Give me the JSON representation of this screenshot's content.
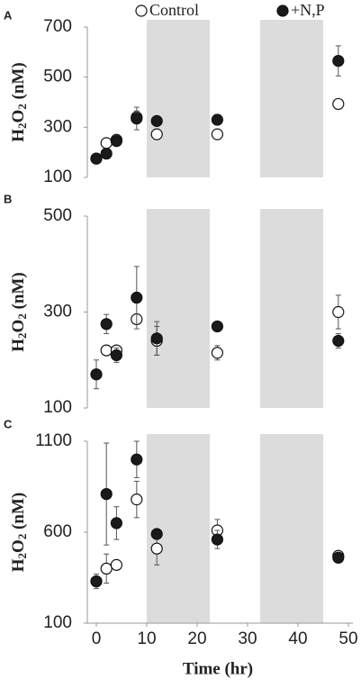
{
  "chart_data": [
    {
      "type": "scatter",
      "panel": "A",
      "ylabel": "H2O2 (nM)",
      "x": [
        0,
        2,
        4,
        8,
        12,
        24,
        48
      ],
      "xlim": [
        0,
        50
      ],
      "ylim": [
        100,
        700
      ],
      "yticks": [
        100,
        300,
        500,
        700
      ],
      "shaded": [
        [
          10,
          22.5
        ],
        [
          32.5,
          45
        ]
      ],
      "series": [
        {
          "name": "Control",
          "color": "#ffffff",
          "values": [
            175,
            237,
            250,
            340,
            272,
            272,
            393
          ],
          "errors": [
            null,
            null,
            null,
            25,
            null,
            null,
            null
          ]
        },
        {
          "name": "+N,P",
          "color": "#1a1a1a",
          "values": [
            175,
            195,
            245,
            335,
            325,
            330,
            565
          ],
          "errors": [
            null,
            null,
            null,
            45,
            null,
            20,
            60
          ]
        }
      ]
    },
    {
      "type": "scatter",
      "panel": "B",
      "ylabel": "H2O2 (nM)",
      "x": [
        0,
        2,
        4,
        8,
        12,
        24,
        48
      ],
      "xlim": [
        0,
        50
      ],
      "ylim": [
        100,
        500
      ],
      "yticks": [
        100,
        300,
        500
      ],
      "shaded": [
        [
          10,
          22.5
        ],
        [
          32.5,
          45
        ]
      ],
      "series": [
        {
          "color": "#ffffff",
          "values": [
            null,
            220,
            220,
            285,
            240,
            215,
            300
          ],
          "errors": [
            null,
            null,
            null,
            null,
            30,
            15,
            35
          ]
        },
        {
          "color": "#1a1a1a",
          "values": [
            170,
            275,
            210,
            330,
            245,
            270,
            240
          ],
          "errors": [
            30,
            20,
            15,
            65,
            35,
            null,
            15
          ]
        }
      ]
    },
    {
      "type": "scatter",
      "panel": "C",
      "ylabel": "H2O2 (nM)",
      "xlabel": "Time (hr)",
      "x": [
        0,
        2,
        4,
        8,
        12,
        24,
        48
      ],
      "xlim": [
        0,
        50
      ],
      "xticks": [
        0,
        10,
        20,
        30,
        40,
        50
      ],
      "ylim": [
        100,
        1100
      ],
      "yticks": [
        100,
        600,
        1100
      ],
      "shaded": [
        [
          10,
          22.5
        ],
        [
          32.5,
          45
        ]
      ],
      "series": [
        {
          "color": "#ffffff",
          "values": [
            330,
            400,
            420,
            780,
            510,
            610,
            470
          ],
          "errors": [
            null,
            80,
            null,
            100,
            90,
            60,
            20
          ]
        },
        {
          "color": "#1a1a1a",
          "values": [
            330,
            810,
            650,
            1000,
            590,
            560,
            460
          ],
          "errors": [
            40,
            280,
            90,
            100,
            null,
            50,
            null
          ]
        }
      ]
    }
  ]
}
